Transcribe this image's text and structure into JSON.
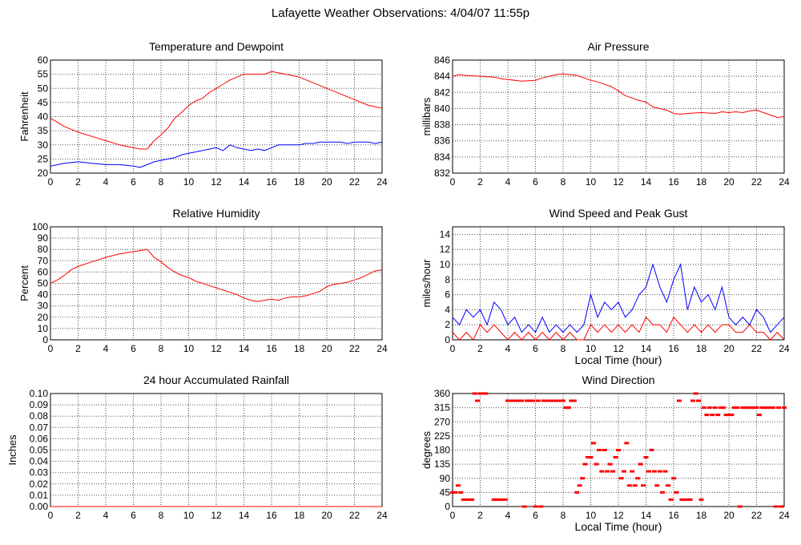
{
  "page_title": "Lafayette Weather Observations: 4/04/07 11:55p",
  "colors": {
    "primary": "#ff0000",
    "secondary": "#0000ff",
    "grid": "#000000"
  },
  "chart_data": [
    {
      "id": "temp",
      "type": "line",
      "title": "Temperature and Dewpoint",
      "xlabel": "",
      "ylabel": "Fahrenheit",
      "xlim": [
        0,
        24
      ],
      "ylim": [
        20,
        60
      ],
      "xticks": [
        0,
        2,
        4,
        6,
        8,
        10,
        12,
        14,
        16,
        18,
        20,
        22,
        24
      ],
      "yticks": [
        20,
        25,
        30,
        35,
        40,
        45,
        50,
        55,
        60
      ],
      "grid": true,
      "series": [
        {
          "color": "#ff0000",
          "x": [
            0,
            0.5,
            1,
            2,
            3,
            4,
            5,
            6,
            6.5,
            7,
            7.5,
            8,
            8.5,
            9,
            9.5,
            10,
            10.5,
            11,
            11.5,
            12,
            12.5,
            13,
            13.5,
            14,
            14.5,
            15,
            15.5,
            16,
            16.5,
            17,
            17.5,
            18,
            18.5,
            19,
            19.5,
            20,
            20.5,
            21,
            21.5,
            22,
            22.5,
            23,
            23.5,
            24
          ],
          "y": [
            39.5,
            38,
            36.5,
            34.5,
            33,
            31.5,
            30,
            29,
            28.5,
            28.5,
            31.5,
            33.5,
            36,
            39.5,
            41.5,
            44,
            45.5,
            46.5,
            48.5,
            50,
            51.5,
            53,
            54,
            55,
            55,
            55,
            55,
            56,
            55.5,
            55,
            54.5,
            54,
            53,
            52,
            51,
            50,
            49,
            48,
            47,
            46,
            45,
            44,
            43.5,
            43
          ]
        },
        {
          "color": "#0000ff",
          "x": [
            0,
            1,
            2,
            3,
            4,
            5,
            6,
            6.5,
            7,
            7.5,
            8,
            8.5,
            9,
            9.5,
            10,
            10.5,
            11,
            11.5,
            12,
            12.5,
            13,
            13.5,
            14,
            14.5,
            15,
            15.5,
            16,
            16.5,
            17,
            17.5,
            18,
            18.5,
            19,
            19.5,
            20,
            20.5,
            21,
            21.5,
            22,
            22.5,
            23,
            23.5,
            24
          ],
          "y": [
            22.5,
            23.5,
            24,
            23.5,
            23,
            23,
            22.5,
            22,
            23,
            24,
            24.5,
            25,
            25.5,
            26.5,
            27,
            27.5,
            28,
            28.5,
            29,
            28,
            30,
            29,
            28.5,
            28,
            28.5,
            28,
            29,
            30,
            30,
            30,
            30,
            30.5,
            30.5,
            31,
            31,
            31,
            31,
            30.5,
            31,
            31,
            31,
            30.5,
            31
          ]
        }
      ]
    },
    {
      "id": "pressure",
      "type": "line",
      "title": "Air Pressure",
      "xlabel": "",
      "ylabel": "millibars",
      "xlim": [
        0,
        24
      ],
      "ylim": [
        832,
        846
      ],
      "xticks": [
        0,
        2,
        4,
        6,
        8,
        10,
        12,
        14,
        16,
        18,
        20,
        22,
        24
      ],
      "yticks": [
        832,
        834,
        836,
        838,
        840,
        842,
        844,
        846
      ],
      "grid": true,
      "series": [
        {
          "color": "#ff0000",
          "x": [
            0,
            0.5,
            1,
            2,
            3,
            3.5,
            4,
            5,
            6,
            6.5,
            7,
            7.5,
            8,
            8.5,
            9,
            9.5,
            10,
            10.5,
            11,
            11.5,
            12,
            12.5,
            13,
            13.5,
            14,
            14.5,
            15,
            15.5,
            16,
            16.5,
            17,
            18,
            19,
            19.5,
            20,
            20.5,
            21,
            21.5,
            22,
            22.5,
            23,
            23.5,
            24
          ],
          "y": [
            844,
            844.2,
            844.1,
            844,
            843.9,
            843.7,
            843.6,
            843.4,
            843.5,
            843.8,
            844,
            844.2,
            844.3,
            844.2,
            844.1,
            843.8,
            843.5,
            843.3,
            843,
            842.7,
            842.2,
            841.6,
            841.3,
            841,
            840.8,
            840.2,
            840,
            839.8,
            839.4,
            839.3,
            839.4,
            839.5,
            839.4,
            839.6,
            839.5,
            839.6,
            839.5,
            839.7,
            839.8,
            839.5,
            839.2,
            838.9,
            839
          ]
        }
      ]
    },
    {
      "id": "humidity",
      "type": "line",
      "title": "Relative Humidity",
      "xlabel": "",
      "ylabel": "Percent",
      "xlim": [
        0,
        24
      ],
      "ylim": [
        0,
        100
      ],
      "xticks": [
        0,
        2,
        4,
        6,
        8,
        10,
        12,
        14,
        16,
        18,
        20,
        22,
        24
      ],
      "yticks": [
        0,
        10,
        20,
        30,
        40,
        50,
        60,
        70,
        80,
        90,
        100
      ],
      "grid": true,
      "series": [
        {
          "color": "#ff0000",
          "x": [
            0,
            0.5,
            1,
            1.5,
            2,
            3,
            4,
            5,
            6,
            6.5,
            7,
            7.5,
            8,
            8.5,
            9,
            9.5,
            10,
            10.5,
            11,
            11.5,
            12,
            12.5,
            13,
            13.5,
            14,
            14.5,
            15,
            15.5,
            16,
            16.5,
            17,
            17.5,
            18,
            18.5,
            19,
            19.5,
            20,
            20.5,
            21,
            21.5,
            22,
            22.5,
            23,
            23.5,
            24
          ],
          "y": [
            50,
            53,
            57,
            62,
            65,
            69,
            73,
            76,
            78,
            79,
            80,
            73,
            69,
            64,
            60,
            57,
            55,
            52,
            50,
            48,
            46,
            44,
            42,
            40,
            37,
            35,
            34,
            35,
            36,
            35,
            37,
            38,
            38,
            39,
            41,
            43,
            47,
            49,
            50,
            51,
            53,
            55,
            58,
            61,
            62
          ]
        }
      ]
    },
    {
      "id": "wind",
      "type": "line",
      "title": "Wind Speed and Peak Gust",
      "xlabel": "Local Time (hour)",
      "ylabel": "miles/hour",
      "xlim": [
        0,
        24
      ],
      "ylim": [
        0,
        15
      ],
      "xticks": [
        0,
        2,
        4,
        6,
        8,
        10,
        12,
        14,
        16,
        18,
        20,
        22,
        24
      ],
      "yticks": [
        0,
        2,
        4,
        6,
        8,
        10,
        12,
        14
      ],
      "grid": true,
      "series": [
        {
          "color": "#0000ff",
          "x": [
            0,
            0.5,
            1,
            1.5,
            2,
            2.5,
            3,
            3.5,
            4,
            4.5,
            5,
            5.5,
            6,
            6.5,
            7,
            7.5,
            8,
            8.5,
            9,
            9.5,
            10,
            10.5,
            11,
            11.5,
            12,
            12.5,
            13,
            13.5,
            14,
            14.5,
            15,
            15.5,
            16,
            16.5,
            17,
            17.5,
            18,
            18.5,
            19,
            19.5,
            20,
            20.5,
            21,
            21.5,
            22,
            22.5,
            23,
            23.5,
            24
          ],
          "y": [
            3,
            2,
            4,
            3,
            4,
            2,
            5,
            4,
            2,
            3,
            1,
            2,
            1,
            3,
            1,
            2,
            1,
            2,
            1,
            2,
            6,
            3,
            5,
            4,
            5,
            3,
            4,
            6,
            7,
            10,
            7,
            5,
            8,
            10,
            4,
            7,
            5,
            6,
            4,
            7,
            3,
            2,
            3,
            2,
            4,
            3,
            1,
            2,
            3
          ]
        },
        {
          "color": "#ff0000",
          "x": [
            0,
            0.5,
            1,
            1.5,
            2,
            2.5,
            3,
            3.5,
            4,
            4.5,
            5,
            5.5,
            6,
            6.5,
            7,
            7.5,
            8,
            8.5,
            9,
            9.5,
            10,
            10.5,
            11,
            11.5,
            12,
            12.5,
            13,
            13.5,
            14,
            14.5,
            15,
            15.5,
            16,
            16.5,
            17,
            17.5,
            18,
            18.5,
            19,
            19.5,
            20,
            20.5,
            21,
            21.5,
            22,
            22.5,
            23,
            23.5,
            24
          ],
          "y": [
            1,
            0,
            1,
            0,
            2,
            1,
            2,
            1,
            0,
            1,
            0,
            1,
            0,
            1,
            0,
            1,
            0,
            1,
            0,
            0,
            2,
            1,
            2,
            1,
            2,
            1,
            2,
            1,
            3,
            2,
            2,
            1,
            3,
            2,
            1,
            2,
            1,
            2,
            1,
            2,
            2,
            1,
            1,
            2,
            1,
            1,
            0,
            1,
            0
          ]
        }
      ]
    },
    {
      "id": "rain",
      "type": "line",
      "title": "24 hour Accumulated Rainfall",
      "xlabel": "",
      "ylabel": "Inches",
      "xlim": [
        0,
        24
      ],
      "ylim": [
        0,
        0.1
      ],
      "xticks": [
        0,
        2,
        4,
        6,
        8,
        10,
        12,
        14,
        16,
        18,
        20,
        22,
        24
      ],
      "yticks": [
        "0.00",
        "0.01",
        "0.02",
        "0.03",
        "0.04",
        "0.05",
        "0.06",
        "0.07",
        "0.08",
        "0.09",
        "0.10"
      ],
      "grid": true,
      "series": [
        {
          "color": "#ff0000",
          "x": [
            0,
            24
          ],
          "y": [
            0,
            0
          ]
        }
      ]
    },
    {
      "id": "direction",
      "type": "scatter",
      "title": "Wind Direction",
      "xlabel": "Local Time (hour)",
      "ylabel": "degrees",
      "xlim": [
        0,
        24
      ],
      "ylim": [
        0,
        360
      ],
      "xticks": [
        0,
        2,
        4,
        6,
        8,
        10,
        12,
        14,
        16,
        18,
        20,
        22,
        24
      ],
      "yticks": [
        0,
        45,
        90,
        135,
        180,
        225,
        270,
        315,
        360
      ],
      "grid": true,
      "series": [
        {
          "color": "#ff0000",
          "x": [
            0,
            0.2,
            0.4,
            0.6,
            0.8,
            1.0,
            1.2,
            1.4,
            1.6,
            1.8,
            2.0,
            2.2,
            2.4,
            3.0,
            3.2,
            3.4,
            3.6,
            3.8,
            4.0,
            4.2,
            4.4,
            4.6,
            4.8,
            5.0,
            5.2,
            5.4,
            5.6,
            5.8,
            6.0,
            6.2,
            6.4,
            6.6,
            6.8,
            7.0,
            7.2,
            7.4,
            7.6,
            7.8,
            8.0,
            8.2,
            8.4,
            8.6,
            8.8,
            9.0,
            9.2,
            9.4,
            9.6,
            9.8,
            10.0,
            10.2,
            10.4,
            10.6,
            10.8,
            11.0,
            11.2,
            11.4,
            11.6,
            11.8,
            12.0,
            12.2,
            12.4,
            12.6,
            12.8,
            13.0,
            13.2,
            13.4,
            13.6,
            13.8,
            14.0,
            14.2,
            14.4,
            14.6,
            14.8,
            15.0,
            15.2,
            15.4,
            15.6,
            15.8,
            16.0,
            16.2,
            16.4,
            16.6,
            16.8,
            17.0,
            17.2,
            17.4,
            17.6,
            17.8,
            18.0,
            18.2,
            18.4,
            18.6,
            18.8,
            19.0,
            19.2,
            19.4,
            19.6,
            19.8,
            20.0,
            20.2,
            20.4,
            20.6,
            20.8,
            21.0,
            21.2,
            21.4,
            21.6,
            21.8,
            22.0,
            22.2,
            22.4,
            22.6,
            22.8,
            23.0,
            23.2,
            23.4,
            23.6,
            23.8,
            24.0
          ],
          "y": [
            45,
            45,
            67,
            45,
            22,
            22,
            22,
            22,
            360,
            337,
            360,
            360,
            360,
            22,
            22,
            22,
            22,
            22,
            337,
            337,
            337,
            337,
            337,
            337,
            0,
            337,
            337,
            337,
            0,
            337,
            0,
            337,
            337,
            337,
            337,
            337,
            337,
            337,
            337,
            315,
            315,
            337,
            337,
            45,
            67,
            90,
            135,
            157,
            157,
            202,
            135,
            180,
            112,
            180,
            112,
            135,
            112,
            157,
            180,
            90,
            112,
            202,
            67,
            112,
            67,
            90,
            135,
            67,
            157,
            112,
            180,
            112,
            67,
            112,
            45,
            112,
            67,
            22,
            90,
            45,
            337,
            22,
            22,
            22,
            22,
            337,
            360,
            337,
            22,
            315,
            292,
            315,
            292,
            315,
            292,
            315,
            315,
            292,
            292,
            292,
            315,
            315,
            0,
            315,
            315,
            315,
            315,
            315,
            315,
            292,
            315,
            315,
            315,
            315,
            315,
            0,
            315,
            0,
            315
          ]
        }
      ]
    }
  ]
}
